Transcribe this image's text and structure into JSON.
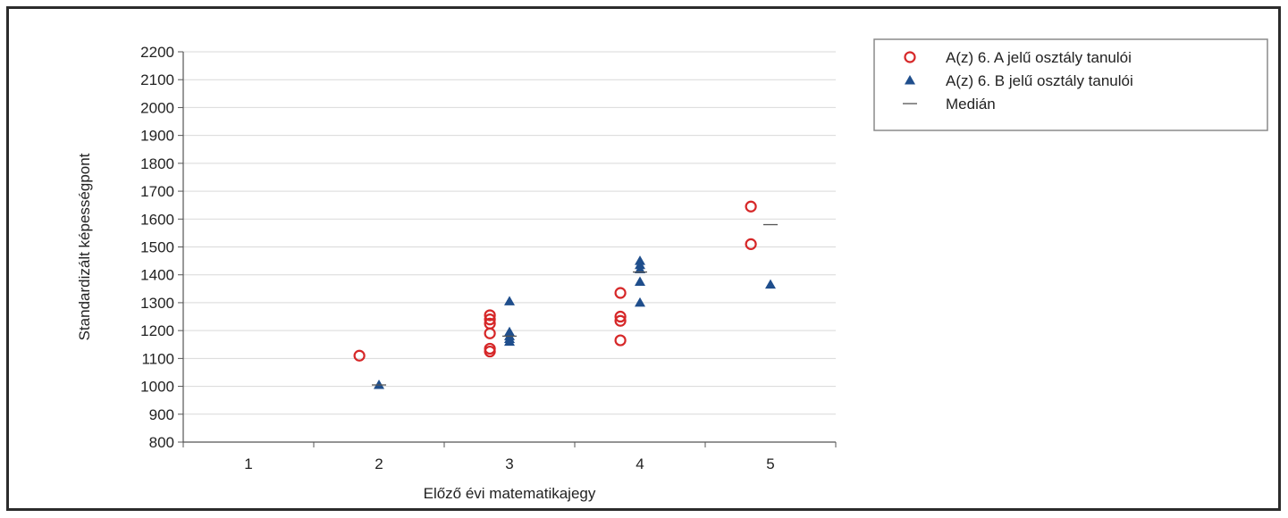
{
  "chart_data": {
    "type": "scatter",
    "xlabel": "Előző évi matematikajegy",
    "ylabel": "Standardizált képességpont",
    "x_ticks": [
      1,
      2,
      3,
      4,
      5
    ],
    "ylim": [
      800,
      2200
    ],
    "y_ticks": [
      800,
      900,
      1000,
      1100,
      1200,
      1300,
      1400,
      1500,
      1600,
      1700,
      1800,
      1900,
      2000,
      2100,
      2200
    ],
    "grid": "horizontal",
    "legend_position": "top-right",
    "series": [
      {
        "name": "A(z) 6. A jelű osztály tanulói",
        "marker": "circle-open",
        "color": "#d62728",
        "points": [
          {
            "x": 2,
            "y": 1110
          },
          {
            "x": 3,
            "y": 1125
          },
          {
            "x": 3,
            "y": 1135
          },
          {
            "x": 3,
            "y": 1190
          },
          {
            "x": 3,
            "y": 1225
          },
          {
            "x": 3,
            "y": 1240
          },
          {
            "x": 3,
            "y": 1255
          },
          {
            "x": 4,
            "y": 1165
          },
          {
            "x": 4,
            "y": 1235
          },
          {
            "x": 4,
            "y": 1250
          },
          {
            "x": 4,
            "y": 1335
          },
          {
            "x": 5,
            "y": 1510
          },
          {
            "x": 5,
            "y": 1645
          }
        ]
      },
      {
        "name": "A(z) 6. B jelű osztály tanulói",
        "marker": "triangle",
        "color": "#1f4e8c",
        "points": [
          {
            "x": 2,
            "y": 1005
          },
          {
            "x": 3,
            "y": 1160
          },
          {
            "x": 3,
            "y": 1170
          },
          {
            "x": 3,
            "y": 1180
          },
          {
            "x": 3,
            "y": 1195
          },
          {
            "x": 3,
            "y": 1305
          },
          {
            "x": 4,
            "y": 1300
          },
          {
            "x": 4,
            "y": 1375
          },
          {
            "x": 4,
            "y": 1420
          },
          {
            "x": 4,
            "y": 1435
          },
          {
            "x": 4,
            "y": 1450
          },
          {
            "x": 5,
            "y": 1365
          }
        ]
      },
      {
        "name": "Medián",
        "marker": "dash",
        "color": "#555555",
        "points": [
          {
            "x": 2,
            "y": 1005
          },
          {
            "x": 3,
            "y": 1180
          },
          {
            "x": 4,
            "y": 1410
          },
          {
            "x": 5,
            "y": 1580
          }
        ]
      }
    ]
  }
}
